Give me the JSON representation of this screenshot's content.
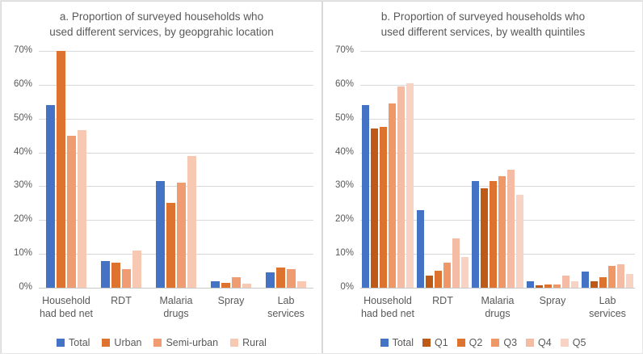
{
  "page": {
    "background": "#ffffff",
    "panel_border": "#d9d9d9",
    "grid_color": "#d9d9d9",
    "text_color": "#595959"
  },
  "chart_data": [
    {
      "type": "bar",
      "title_lines": [
        "a. Proportion of surveyed households who",
        "used different services, by geopgrahic location"
      ],
      "title": "a. Proportion of surveyed households who used different services, by geopgrahic location",
      "categories": [
        "Household had bed net",
        "RDT",
        "Malaria drugs",
        "Spray",
        "Lab services"
      ],
      "categories_lines": [
        [
          "Household",
          "had bed net"
        ],
        [
          "RDT"
        ],
        [
          "Malaria",
          "drugs"
        ],
        [
          "Spray"
        ],
        [
          "Lab services"
        ]
      ],
      "series": [
        {
          "name": "Total",
          "color": "#4472C4",
          "values": [
            54,
            8,
            31.5,
            2,
            4.5
          ]
        },
        {
          "name": "Urban",
          "color": "#DE722F",
          "values": [
            70,
            7.5,
            25,
            1.5,
            6
          ]
        },
        {
          "name": "Semi-urban",
          "color": "#F09C72",
          "values": [
            45,
            5.5,
            31,
            3,
            5.5
          ]
        },
        {
          "name": "Rural",
          "color": "#F7C8B2",
          "values": [
            46.5,
            11,
            39,
            1.2,
            2
          ]
        }
      ],
      "xlabel": "",
      "ylabel": "",
      "ylim": [
        0,
        70
      ],
      "y_ticks": [
        "0%",
        "10%",
        "20%",
        "30%",
        "40%",
        "50%",
        "60%",
        "70%"
      ],
      "grid": true,
      "legend_position": "bottom"
    },
    {
      "type": "bar",
      "title_lines": [
        "b. Proportion of surveyed households who",
        "used different services, by wealth quintiles"
      ],
      "title": "b. Proportion of surveyed households who used different services, by wealth quintiles",
      "categories": [
        "Household had bed net",
        "RDT",
        "Malaria drugs",
        "Spray",
        "Lab services"
      ],
      "categories_lines": [
        [
          "Household",
          "had bed net"
        ],
        [
          "RDT"
        ],
        [
          "Malaria",
          "drugs"
        ],
        [
          "Spray"
        ],
        [
          "Lab services"
        ]
      ],
      "series": [
        {
          "name": "Total",
          "color": "#4472C4",
          "values": [
            54,
            23,
            31.5,
            1.8,
            4.8
          ]
        },
        {
          "name": "Q1",
          "color": "#BE5A17",
          "values": [
            47,
            3.5,
            29.5,
            0.7,
            1.8
          ]
        },
        {
          "name": "Q2",
          "color": "#DE722F",
          "values": [
            47.5,
            5,
            31.5,
            1,
            3
          ]
        },
        {
          "name": "Q3",
          "color": "#F09768",
          "values": [
            54.5,
            7.5,
            33,
            1,
            6.5
          ]
        },
        {
          "name": "Q4",
          "color": "#F4BCA4",
          "values": [
            59.5,
            14.5,
            35,
            3.5,
            7
          ]
        },
        {
          "name": "Q5",
          "color": "#F8D2C3",
          "values": [
            60.5,
            9,
            27.5,
            2,
            4
          ]
        }
      ],
      "xlabel": "",
      "ylabel": "",
      "ylim": [
        0,
        70
      ],
      "y_ticks": [
        "0%",
        "10%",
        "20%",
        "30%",
        "40%",
        "50%",
        "60%",
        "70%"
      ],
      "grid": true,
      "legend_position": "bottom"
    }
  ]
}
